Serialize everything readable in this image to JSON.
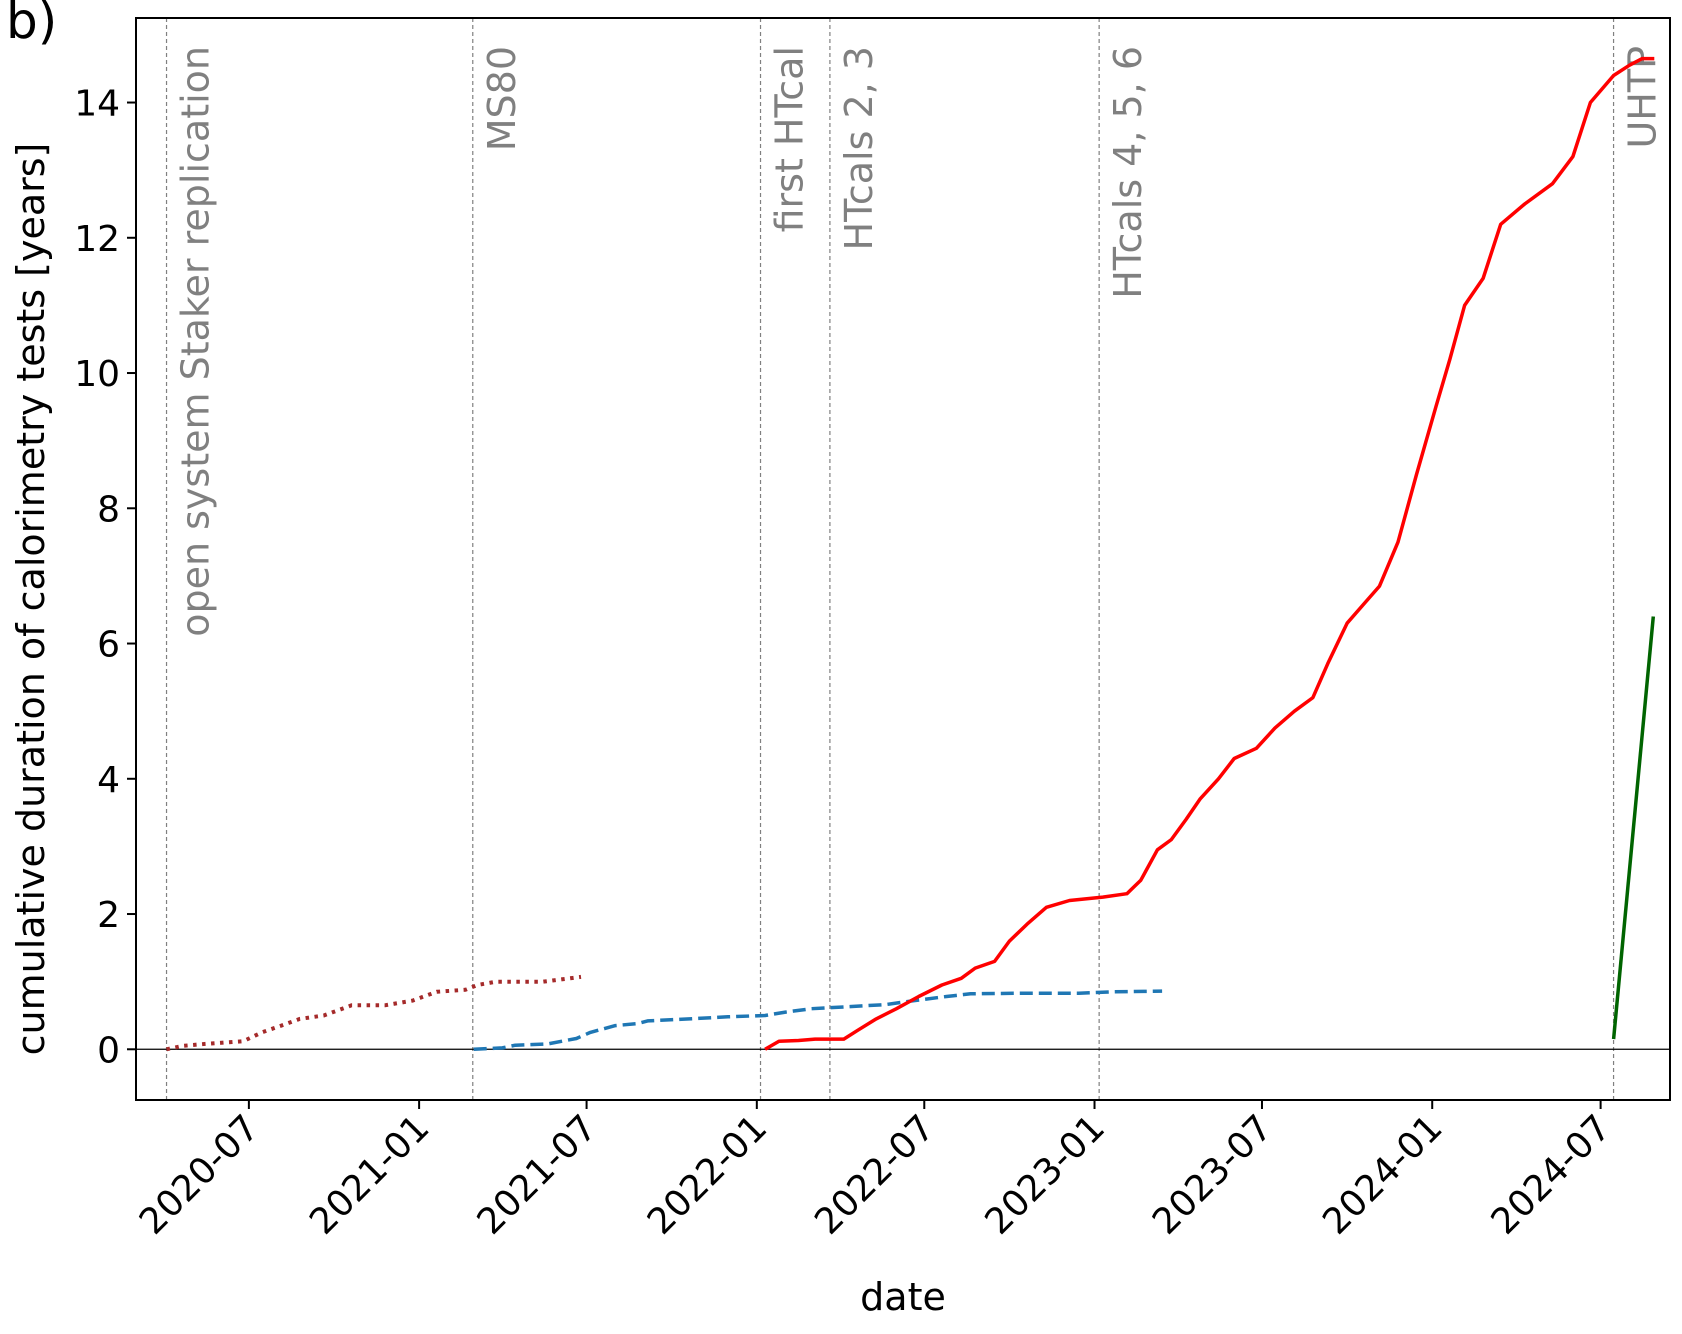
{
  "panel_label": "b)",
  "chart_data": {
    "type": "line",
    "title": "",
    "xlabel": "date",
    "ylabel": "cumulative duration of calorimetry tests [years]",
    "xlim": [
      "2020-03-01",
      "2024-09-14"
    ],
    "ylim": [
      -0.75,
      15.25
    ],
    "x_ticks": [
      "2020-07",
      "2021-01",
      "2021-07",
      "2022-01",
      "2022-07",
      "2023-01",
      "2023-07",
      "2024-01",
      "2024-07"
    ],
    "y_ticks": [
      0,
      2,
      4,
      6,
      8,
      10,
      12,
      14
    ],
    "grid": false,
    "zero_line": true,
    "events": [
      {
        "date": "2020-04-03",
        "label": "open system Staker replication"
      },
      {
        "date": "2021-02-28",
        "label": "MS80"
      },
      {
        "date": "2022-01-05",
        "label": "first HTcal"
      },
      {
        "date": "2022-03-21",
        "label": "HTcals 2, 3"
      },
      {
        "date": "2023-01-06",
        "label": "HTcals 4, 5, 6"
      },
      {
        "date": "2024-07-15",
        "label": "UHTP"
      }
    ],
    "series": [
      {
        "color": "#a52a2a",
        "style": "dotted",
        "points": [
          [
            "2020-04-03",
            0.0
          ],
          [
            "2020-04-20",
            0.05
          ],
          [
            "2020-05-15",
            0.08
          ],
          [
            "2020-06-05",
            0.1
          ],
          [
            "2020-06-25",
            0.12
          ],
          [
            "2020-07-15",
            0.25
          ],
          [
            "2020-08-05",
            0.35
          ],
          [
            "2020-08-25",
            0.45
          ],
          [
            "2020-09-20",
            0.5
          ],
          [
            "2020-10-20",
            0.65
          ],
          [
            "2020-11-25",
            0.65
          ],
          [
            "2020-12-25",
            0.72
          ],
          [
            "2021-01-20",
            0.85
          ],
          [
            "2021-02-20",
            0.88
          ],
          [
            "2021-03-05",
            0.95
          ],
          [
            "2021-03-25",
            1.0
          ],
          [
            "2021-05-15",
            1.0
          ],
          [
            "2021-06-25",
            1.07
          ]
        ]
      },
      {
        "color": "#1f77b4",
        "style": "dashed",
        "points": [
          [
            "2021-03-01",
            0.0
          ],
          [
            "2021-04-01",
            0.02
          ],
          [
            "2021-04-15",
            0.06
          ],
          [
            "2021-05-20",
            0.08
          ],
          [
            "2021-06-20",
            0.16
          ],
          [
            "2021-07-05",
            0.25
          ],
          [
            "2021-08-01",
            0.35
          ],
          [
            "2021-08-25",
            0.38
          ],
          [
            "2021-09-05",
            0.42
          ],
          [
            "2021-10-20",
            0.45
          ],
          [
            "2021-12-01",
            0.48
          ],
          [
            "2022-01-10",
            0.5
          ],
          [
            "2022-02-01",
            0.55
          ],
          [
            "2022-03-01",
            0.6
          ],
          [
            "2022-04-10",
            0.63
          ],
          [
            "2022-05-20",
            0.66
          ],
          [
            "2022-06-20",
            0.72
          ],
          [
            "2022-07-25",
            0.78
          ],
          [
            "2022-08-20",
            0.82
          ],
          [
            "2022-10-15",
            0.83
          ],
          [
            "2022-12-15",
            0.83
          ],
          [
            "2023-01-20",
            0.85
          ],
          [
            "2023-03-15",
            0.86
          ]
        ]
      },
      {
        "color": "#ff0000",
        "style": "solid",
        "points": [
          [
            "2022-01-10",
            0.0
          ],
          [
            "2022-01-25",
            0.12
          ],
          [
            "2022-02-15",
            0.13
          ],
          [
            "2022-03-05",
            0.15
          ],
          [
            "2022-04-05",
            0.15
          ],
          [
            "2022-04-20",
            0.28
          ],
          [
            "2022-05-10",
            0.45
          ],
          [
            "2022-06-01",
            0.6
          ],
          [
            "2022-06-25",
            0.78
          ],
          [
            "2022-07-20",
            0.95
          ],
          [
            "2022-08-10",
            1.05
          ],
          [
            "2022-08-25",
            1.2
          ],
          [
            "2022-09-15",
            1.3
          ],
          [
            "2022-10-01",
            1.6
          ],
          [
            "2022-10-20",
            1.85
          ],
          [
            "2022-11-10",
            2.1
          ],
          [
            "2022-12-05",
            2.2
          ],
          [
            "2023-01-10",
            2.25
          ],
          [
            "2023-02-05",
            2.3
          ],
          [
            "2023-02-20",
            2.5
          ],
          [
            "2023-03-10",
            2.95
          ],
          [
            "2023-03-25",
            3.1
          ],
          [
            "2023-04-10",
            3.4
          ],
          [
            "2023-04-25",
            3.7
          ],
          [
            "2023-05-15",
            4.0
          ],
          [
            "2023-06-01",
            4.3
          ],
          [
            "2023-06-25",
            4.45
          ],
          [
            "2023-07-15",
            4.75
          ],
          [
            "2023-08-05",
            5.0
          ],
          [
            "2023-08-25",
            5.2
          ],
          [
            "2023-09-10",
            5.7
          ],
          [
            "2023-10-01",
            6.3
          ],
          [
            "2023-10-20",
            6.6
          ],
          [
            "2023-11-05",
            6.85
          ],
          [
            "2023-11-25",
            7.5
          ],
          [
            "2023-12-15",
            8.5
          ],
          [
            "2024-01-05",
            9.5
          ],
          [
            "2024-01-20",
            10.2
          ],
          [
            "2024-02-05",
            11.0
          ],
          [
            "2024-02-25",
            11.4
          ],
          [
            "2024-03-15",
            12.2
          ],
          [
            "2024-04-10",
            12.5
          ],
          [
            "2024-05-10",
            12.8
          ],
          [
            "2024-06-01",
            13.2
          ],
          [
            "2024-06-20",
            14.0
          ],
          [
            "2024-07-15",
            14.4
          ],
          [
            "2024-08-01",
            14.55
          ],
          [
            "2024-08-15",
            14.65
          ],
          [
            "2024-08-28",
            14.65
          ]
        ]
      },
      {
        "color": "#006400",
        "style": "solid",
        "points": [
          [
            "2024-07-15",
            0.15
          ],
          [
            "2024-08-27",
            6.4
          ]
        ]
      }
    ]
  }
}
